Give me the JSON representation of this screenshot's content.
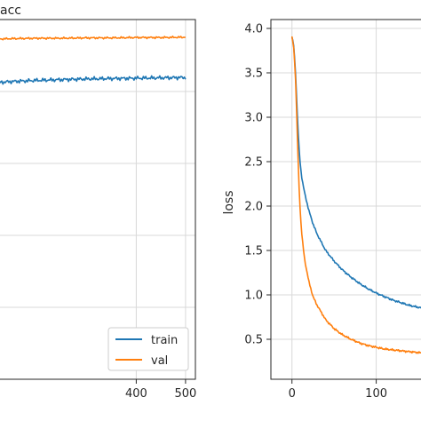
{
  "chart_data": [
    {
      "type": "line",
      "title": "acc",
      "xlabel": "",
      "ylabel": "",
      "x_ticks": [
        400,
        500
      ],
      "xlim": [
        120,
        520
      ],
      "ylim": [
        0.0,
        1.0
      ],
      "grid": true,
      "legend": {
        "placement": "bottom-right",
        "entries": [
          "train",
          "val"
        ]
      },
      "series": [
        {
          "name": "train",
          "color": "#1f77b4",
          "x": [
            120,
            150,
            200,
            250,
            300,
            350,
            400,
            450,
            500
          ],
          "y": [
            0.825,
            0.828,
            0.831,
            0.833,
            0.835,
            0.836,
            0.837,
            0.838,
            0.839
          ]
        },
        {
          "name": "val",
          "color": "#ff7f0e",
          "x": [
            120,
            150,
            200,
            250,
            300,
            350,
            400,
            450,
            500
          ],
          "y": [
            0.946,
            0.947,
            0.948,
            0.948,
            0.949,
            0.949,
            0.95,
            0.95,
            0.951
          ]
        }
      ]
    },
    {
      "type": "line",
      "title": "",
      "xlabel": "",
      "ylabel": "loss",
      "x_ticks": [
        0,
        100
      ],
      "y_ticks": [
        0.5,
        1.0,
        1.5,
        2.0,
        2.5,
        3.0,
        3.5,
        4.0
      ],
      "xlim": [
        -25,
        170
      ],
      "ylim": [
        0.05,
        4.1
      ],
      "grid": true,
      "series": [
        {
          "name": "train",
          "color": "#1f77b4",
          "x": [
            0,
            2,
            4,
            6,
            8,
            10,
            12,
            15,
            20,
            25,
            30,
            40,
            50,
            60,
            70,
            80,
            90,
            100,
            110,
            120,
            130,
            140,
            150,
            160,
            170
          ],
          "y": [
            3.9,
            3.82,
            3.55,
            3.1,
            2.7,
            2.45,
            2.3,
            2.15,
            1.95,
            1.8,
            1.68,
            1.5,
            1.38,
            1.28,
            1.2,
            1.13,
            1.07,
            1.02,
            0.98,
            0.94,
            0.91,
            0.88,
            0.86,
            0.84,
            0.82
          ]
        },
        {
          "name": "val",
          "color": "#ff7f0e",
          "x": [
            0,
            2,
            4,
            6,
            8,
            10,
            12,
            15,
            20,
            25,
            30,
            40,
            50,
            60,
            70,
            80,
            90,
            100,
            110,
            120,
            130,
            140,
            150,
            160,
            170
          ],
          "y": [
            3.9,
            3.8,
            3.5,
            2.9,
            2.3,
            1.9,
            1.65,
            1.4,
            1.15,
            0.98,
            0.88,
            0.72,
            0.62,
            0.55,
            0.5,
            0.46,
            0.43,
            0.41,
            0.39,
            0.38,
            0.37,
            0.36,
            0.35,
            0.34,
            0.33
          ]
        }
      ]
    }
  ]
}
